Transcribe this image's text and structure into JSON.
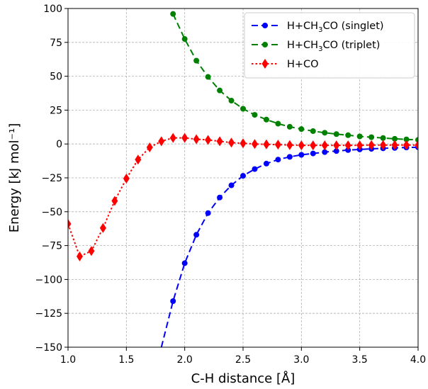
{
  "chart_data": {
    "type": "line",
    "xlabel": "C-H distance [Å]",
    "ylabel": "Energy [kJ mol⁻¹]",
    "xlim": [
      1.0,
      4.0
    ],
    "ylim": [
      -150,
      100
    ],
    "xticks": [
      "1.0",
      "1.5",
      "2.0",
      "2.5",
      "3.0",
      "3.5",
      "4.0"
    ],
    "yticks": [
      "100",
      "75",
      "50",
      "25",
      "0",
      "−25",
      "−50",
      "−75",
      "−100",
      "−125",
      "−150"
    ],
    "grid": true,
    "legend_position": "top-right",
    "series": [
      {
        "name": "H+CH3CO (singlet)",
        "legend_main": "H+CH",
        "legend_sub": "3",
        "legend_rest": "CO (singlet)",
        "color": "#0000ff",
        "line_style": "dashed",
        "marker": "circle",
        "x": [
          1.9,
          2.0,
          2.1,
          2.2,
          2.3,
          2.4,
          2.5,
          2.6,
          2.7,
          2.8,
          2.9,
          3.0,
          3.1,
          3.2,
          3.3,
          3.4,
          3.5,
          3.6,
          3.7,
          3.8,
          3.9,
          4.0
        ],
        "y": [
          -116,
          -88,
          -67,
          -51,
          -39.5,
          -30.5,
          -23.5,
          -18.5,
          -14.5,
          -11.5,
          -9.5,
          -8,
          -7,
          -6,
          -5.2,
          -4.5,
          -4,
          -3.6,
          -3.2,
          -2.9,
          -2.6,
          -2.4
        ],
        "line_extends_to": {
          "x": 1.8,
          "y": -150
        }
      },
      {
        "name": "H+CH3CO (triplet)",
        "legend_main": "H+CH",
        "legend_sub": "3",
        "legend_rest": "CO (triplet)",
        "color": "#008000",
        "line_style": "dashed",
        "marker": "circle",
        "x": [
          1.9,
          2.0,
          2.1,
          2.2,
          2.3,
          2.4,
          2.5,
          2.6,
          2.7,
          2.8,
          2.9,
          3.0,
          3.1,
          3.2,
          3.3,
          3.4,
          3.5,
          3.6,
          3.7,
          3.8,
          3.9,
          4.0
        ],
        "y": [
          96,
          77.5,
          61.5,
          49.5,
          39.5,
          32,
          26,
          21.5,
          18,
          15,
          12.7,
          11,
          9.5,
          8.3,
          7.3,
          6.5,
          5.6,
          5,
          4.4,
          3.8,
          3.4,
          3
        ]
      },
      {
        "name": "H+CO",
        "legend_main": "H+CO",
        "legend_sub": "",
        "legend_rest": "",
        "color": "#ff0000",
        "line_style": "dotted",
        "marker": "diamond",
        "x": [
          1.0,
          1.1,
          1.2,
          1.3,
          1.4,
          1.5,
          1.6,
          1.7,
          1.8,
          1.9,
          2.0,
          2.1,
          2.2,
          2.3,
          2.4,
          2.5,
          2.6,
          2.7,
          2.8,
          2.9,
          3.0,
          3.1,
          3.2,
          3.3,
          3.4,
          3.5,
          3.6,
          3.7,
          3.8,
          3.9,
          4.0
        ],
        "y": [
          -59,
          -83,
          -79,
          -62,
          -42,
          -25.5,
          -11.5,
          -2.5,
          2,
          4.5,
          4.5,
          3.5,
          3,
          2,
          1,
          0.5,
          0,
          -0.3,
          -0.5,
          -0.8,
          -1,
          -1,
          -1,
          -1,
          -1,
          -1,
          -0.8,
          -0.8,
          -0.8,
          -0.8,
          -0.8
        ]
      }
    ]
  }
}
